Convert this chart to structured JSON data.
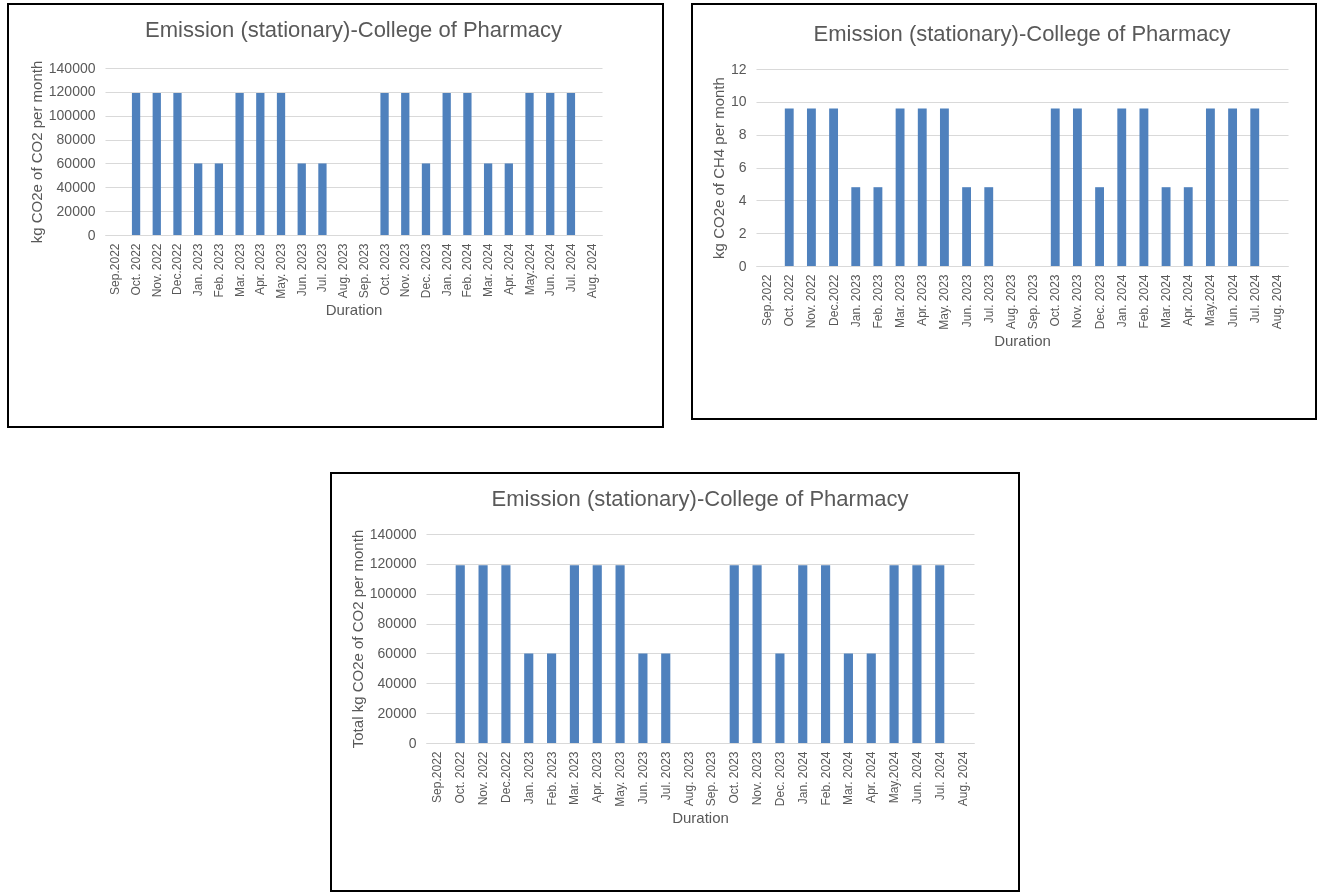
{
  "chart_data": [
    {
      "type": "bar",
      "title": "Emission (stationary)-College of Pharmacy",
      "xlabel": "Duration",
      "ylabel": "kg CO2e of CO2  per month",
      "categories": [
        "Sep.2022",
        "Oct. 2022",
        "Nov. 2022",
        "Dec.2022",
        "Jan. 2023",
        "Feb. 2023",
        "Mar. 2023",
        "Apr. 2023",
        "May. 2023",
        "Jun. 2023",
        "Jul. 2023",
        "Aug. 2023",
        "Sep. 2023",
        "Oct. 2023",
        "Nov. 2023",
        "Dec. 2023",
        "Jan. 2024",
        "Feb. 2024",
        "Mar. 2024",
        "Apr. 2024",
        "May.2024",
        "Jun. 2024",
        "Jul. 2024",
        "Aug. 2024"
      ],
      "values": [
        0,
        119000,
        119000,
        119000,
        60000,
        60000,
        119000,
        119000,
        119000,
        60000,
        60000,
        0,
        0,
        119000,
        119000,
        60000,
        119000,
        119000,
        60000,
        60000,
        119000,
        119000,
        119000,
        0
      ],
      "color": "#4f81bd",
      "ylim": [
        0,
        140000
      ],
      "yticks": [
        0,
        20000,
        40000,
        60000,
        80000,
        100000,
        120000,
        140000
      ],
      "grid": "y"
    },
    {
      "type": "bar",
      "title": "Emission (stationary)-College of Pharmacy",
      "xlabel": "Duration",
      "ylabel": "kg CO2e of CH4 per month",
      "categories": [
        "Sep.2022",
        "Oct. 2022",
        "Nov. 2022",
        "Dec.2022",
        "Jan. 2023",
        "Feb. 2023",
        "Mar. 2023",
        "Apr. 2023",
        "May. 2023",
        "Jun. 2023",
        "Jul. 2023",
        "Aug. 2023",
        "Sep. 2023",
        "Oct. 2023",
        "Nov. 2023",
        "Dec. 2023",
        "Jan. 2024",
        "Feb. 2024",
        "Mar. 2024",
        "Apr. 2024",
        "May.2024",
        "Jun. 2024",
        "Jul. 2024",
        "Aug. 2024"
      ],
      "values": [
        0,
        9.6,
        9.6,
        9.6,
        4.8,
        4.8,
        9.6,
        9.6,
        9.6,
        4.8,
        4.8,
        0,
        0,
        9.6,
        9.6,
        4.8,
        9.6,
        9.6,
        4.8,
        4.8,
        9.6,
        9.6,
        9.6,
        0
      ],
      "color": "#4f81bd",
      "ylim": [
        0,
        12
      ],
      "yticks": [
        0,
        2,
        4,
        6,
        8,
        10,
        12
      ],
      "grid": "y"
    },
    {
      "type": "bar",
      "title": "Emission (stationary)-College of Pharmacy",
      "xlabel": "Duration",
      "ylabel": "Total kg CO2e of CO2 per month",
      "categories": [
        "Sep.2022",
        "Oct. 2022",
        "Nov. 2022",
        "Dec.2022",
        "Jan. 2023",
        "Feb. 2023",
        "Mar. 2023",
        "Apr. 2023",
        "May. 2023",
        "Jun. 2023",
        "Jul. 2023",
        "Aug. 2023",
        "Sep. 2023",
        "Oct. 2023",
        "Nov. 2023",
        "Dec. 2023",
        "Jan. 2024",
        "Feb. 2024",
        "Mar. 2024",
        "Apr. 2024",
        "May.2024",
        "Jun. 2024",
        "Jul. 2024",
        "Aug. 2024"
      ],
      "values": [
        0,
        119000,
        119000,
        119000,
        60000,
        60000,
        119000,
        119000,
        119000,
        60000,
        60000,
        0,
        0,
        119000,
        119000,
        60000,
        119000,
        119000,
        60000,
        60000,
        119000,
        119000,
        119000,
        0
      ],
      "color": "#4f81bd",
      "ylim": [
        0,
        140000
      ],
      "yticks": [
        0,
        20000,
        40000,
        60000,
        80000,
        100000,
        120000,
        140000
      ],
      "grid": "y"
    }
  ]
}
